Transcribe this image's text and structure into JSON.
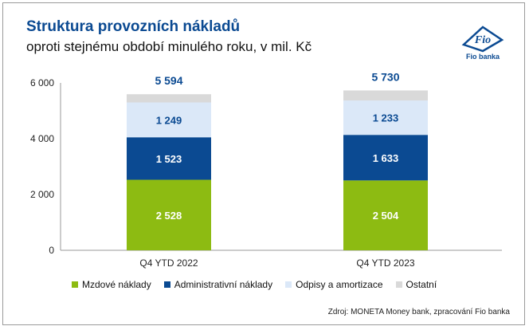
{
  "title": "Struktura provozních nákladů",
  "subtitle": "oproti stejnému období minulého roku, v mil. Kč",
  "logo": {
    "text": "Fio banka",
    "mark": "Fio"
  },
  "source": "Zdroj: MONETA Money bank, zpracování Fio banka",
  "colors": {
    "title": "#0b4a92",
    "mzdove": "#8dbb12",
    "admin": "#0b4a92",
    "odpisy": "#dbe8f8",
    "ostatni": "#d9d9d9"
  },
  "chart_data": {
    "type": "bar",
    "stacked": true,
    "categories": [
      "Q4 YTD 2022",
      "Q4 YTD 2023"
    ],
    "totals": [
      5594,
      5730
    ],
    "total_labels": [
      "5 594",
      "5 730"
    ],
    "series": [
      {
        "name": "Mzdové náklady",
        "values": [
          2528,
          2504
        ],
        "labels": [
          "2 528",
          "2 504"
        ],
        "color": "#8dbb12",
        "label_color": "#ffffff"
      },
      {
        "name": "Administrativní náklady",
        "values": [
          1523,
          1633
        ],
        "labels": [
          "1 523",
          "1 633"
        ],
        "color": "#0b4a92",
        "label_color": "#ffffff"
      },
      {
        "name": "Odpisy a amortizace",
        "values": [
          1249,
          1233
        ],
        "labels": [
          "1 249",
          "1 233"
        ],
        "color": "#dbe8f8",
        "label_color": "#0b4a92"
      },
      {
        "name": "Ostatní",
        "values": [
          294,
          360
        ],
        "labels": [
          "",
          ""
        ],
        "color": "#d9d9d9",
        "label_color": "#0b4a92"
      }
    ],
    "ylim": [
      0,
      6000
    ],
    "yticks": [
      0,
      2000,
      4000,
      6000
    ],
    "ytick_labels": [
      "0",
      "2 000",
      "4 000",
      "6 000"
    ],
    "legend_position": "bottom",
    "grid": false
  }
}
